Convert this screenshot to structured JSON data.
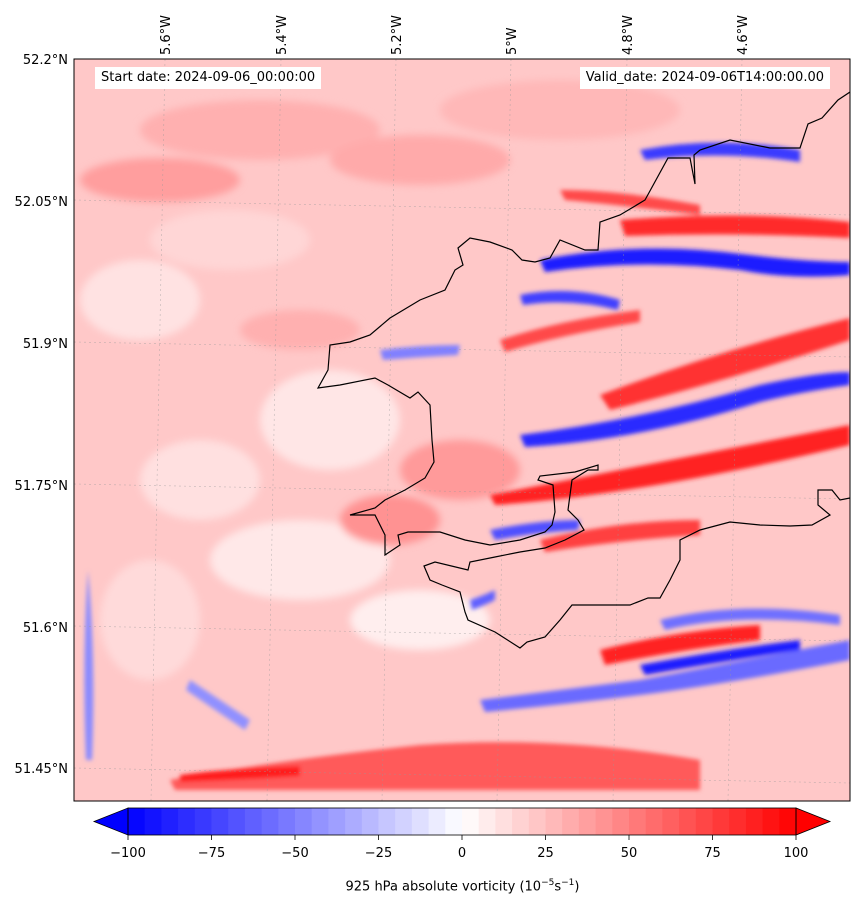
{
  "header": {
    "start_date": "Start date: 2024-09-06_00:00:00",
    "valid_date": "Valid_date: 2024-09-06T14:00:00.00"
  },
  "axes": {
    "lon_labels": [
      "5.6°W",
      "5.4°W",
      "5.2°W",
      "5°W",
      "4.8°W",
      "4.6°W"
    ],
    "lat_labels": [
      "52.2°N",
      "52.05°N",
      "51.9°N",
      "51.75°N",
      "51.6°N",
      "51.45°N"
    ]
  },
  "colorbar": {
    "ticks": [
      "−100",
      "−75",
      "−50",
      "−25",
      "0",
      "25",
      "50",
      "75",
      "100"
    ],
    "label": "925 hPa absolute vorticity (10",
    "label_exp1": "−5",
    "label_mid": "s",
    "label_exp2": "−1",
    "label_end": ")",
    "range": [
      -100,
      100
    ],
    "extend": "both",
    "colormap": "bwr",
    "colors": {
      "negative": "#0000ff",
      "zero": "#ffffff",
      "positive": "#ff0000"
    }
  },
  "map": {
    "variable": "925 hPa absolute vorticity",
    "coastline_color": "#000000",
    "gridlines": "dotted"
  }
}
